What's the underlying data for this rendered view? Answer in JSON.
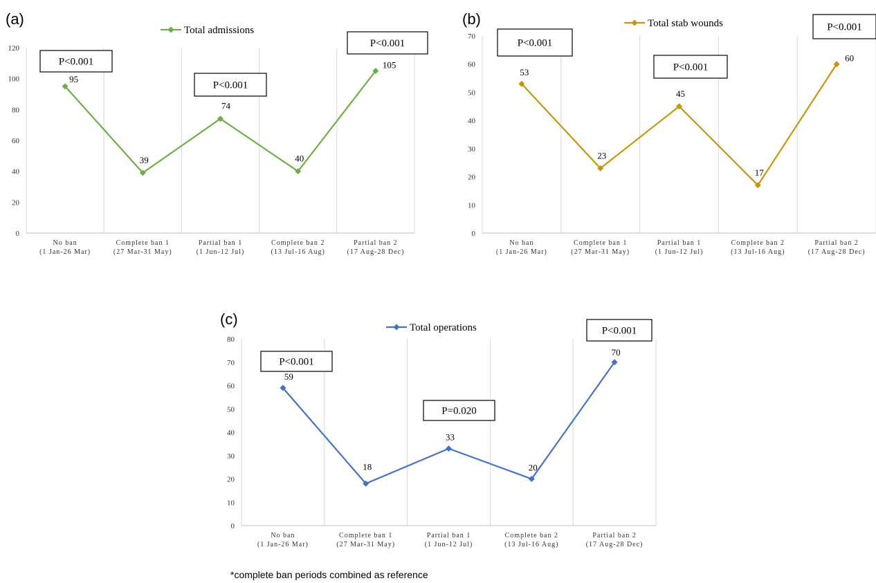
{
  "footnote": "*complete ban periods combined as reference",
  "chart_data": [
    {
      "type": "line",
      "panel": "(a)",
      "categories": [
        [
          "No ban",
          "(1 Jan-26 Mar)"
        ],
        [
          "Complete ban 1",
          "(27 Mar-31 May)"
        ],
        [
          "Partial ban 1",
          "(1 Jun-12 Jul)"
        ],
        [
          "Complete ban 2",
          "(13 Jul-16 Aug)"
        ],
        [
          "Partial ban 2",
          "(17 Aug-28 Dec)"
        ]
      ],
      "series": [
        {
          "name": "Total admissions",
          "values": [
            95,
            39,
            74,
            40,
            105
          ],
          "color": "#70ad47"
        }
      ],
      "ylim": [
        0,
        120
      ],
      "yticks": [
        0,
        20,
        40,
        60,
        80,
        100,
        120
      ],
      "grid": "vertical",
      "legend": "top-center",
      "annotations": [
        "P<0.001",
        "P<0.001",
        "P<0.001"
      ]
    },
    {
      "type": "line",
      "panel": "(b)",
      "categories": [
        [
          "No ban",
          "(1 Jan-26 Mar)"
        ],
        [
          "Complete ban 1",
          "(27 Mar-31 May)"
        ],
        [
          "Partial ban  1",
          "(1 Jun-12 Jul)"
        ],
        [
          "Complete ban 2",
          "(13 Jul-16 Aug)"
        ],
        [
          "Partial ban 2",
          "(17 Aug-28 Dec)"
        ]
      ],
      "series": [
        {
          "name": "Total stab wounds",
          "values": [
            53,
            23,
            45,
            17,
            60
          ],
          "color": "#c5960d"
        }
      ],
      "ylim": [
        0,
        70
      ],
      "yticks": [
        0,
        10,
        20,
        30,
        40,
        50,
        60,
        70
      ],
      "grid": "vertical",
      "legend": "top-center",
      "annotations": [
        "P<0.001",
        "P<0.001",
        "P<0.001"
      ]
    },
    {
      "type": "line",
      "panel": "(c)",
      "categories": [
        [
          "No ban",
          "(1 Jan-26 Mar)"
        ],
        [
          "Complete ban 1",
          "(27 Mar-31 May)"
        ],
        [
          "Partial ban 1",
          "(1 Jun-12 Jul)"
        ],
        [
          "Complete ban 2",
          "(13 Jul-16 Aug)"
        ],
        [
          "Partial ban 2",
          "(17 Aug-28 Dec)"
        ]
      ],
      "series": [
        {
          "name": "Total operations",
          "values": [
            59,
            18,
            33,
            20,
            70
          ],
          "color": "#4472c4"
        }
      ],
      "ylim": [
        0,
        80
      ],
      "yticks": [
        0,
        10,
        20,
        30,
        40,
        50,
        60,
        70,
        80
      ],
      "grid": "vertical",
      "legend": "top-center",
      "annotations": [
        "P<0.001",
        "P=0.020",
        "P<0.001"
      ]
    }
  ]
}
